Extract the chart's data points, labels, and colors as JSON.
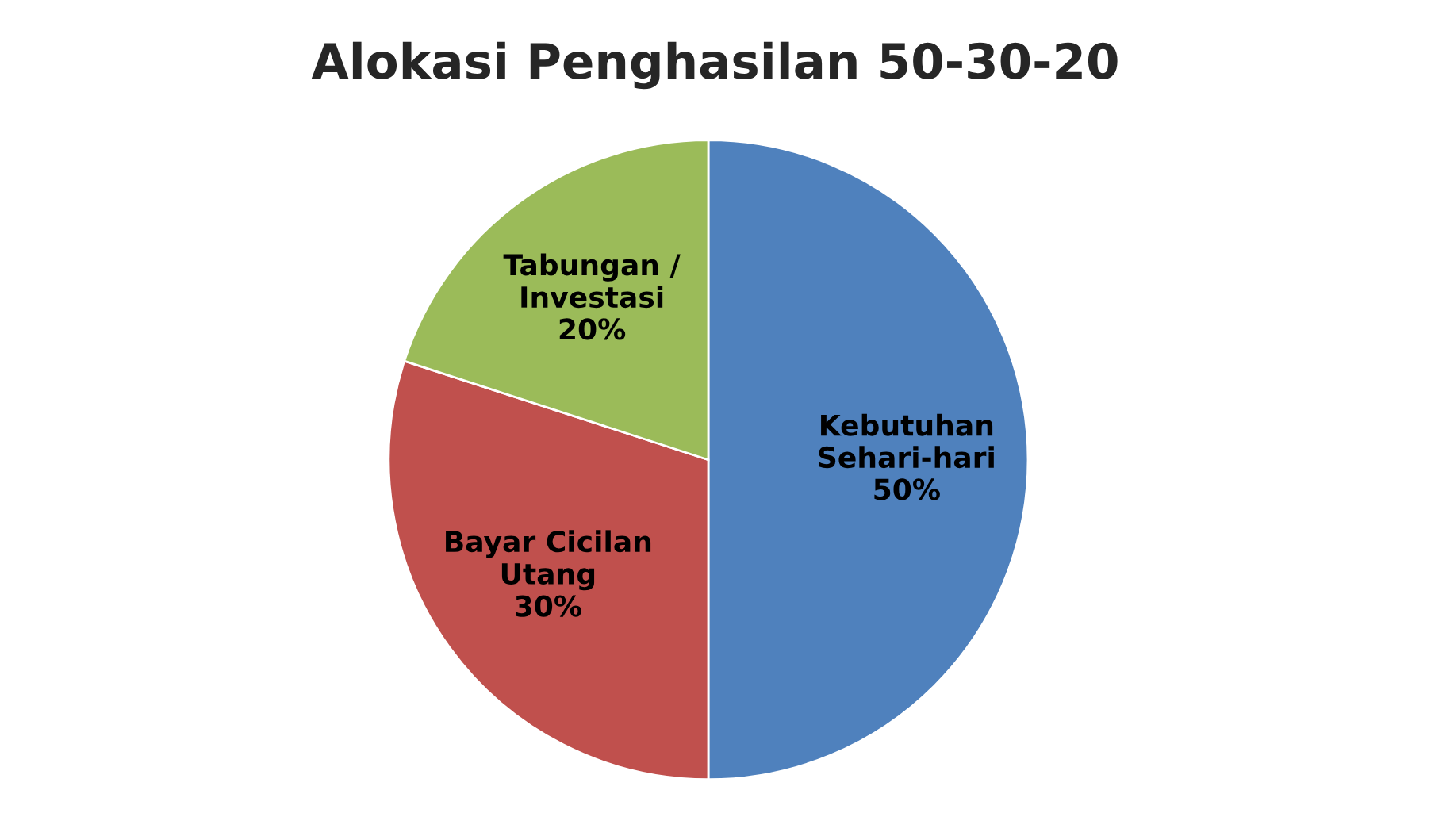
{
  "chart_data": {
    "type": "pie",
    "title": "Alokasi Penghasilan 50-30-20",
    "categories": [
      "Kebutuhan\nSehari-hari",
      "Bayar Cicilan\nUtang",
      "Tabungan /\nInvestasi"
    ],
    "values": [
      50,
      30,
      20
    ],
    "value_labels": [
      "50%",
      "30%",
      "20%"
    ],
    "colors": [
      "#4f81bd",
      "#c0504d",
      "#9bbb59"
    ],
    "legend": false
  }
}
